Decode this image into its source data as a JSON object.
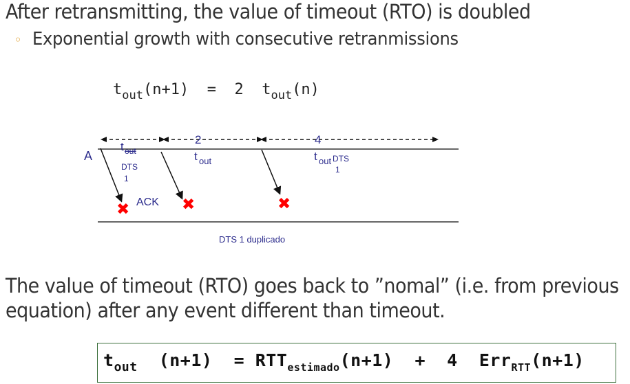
{
  "heading": "After retransmitting, the value of timeout (RTO) is doubled",
  "bullet": "Exponential growth with consecutive retranmissions",
  "formula1": {
    "lhs_t": "t",
    "lhs_sub": "out",
    "lhs_arg": "(n+1)",
    "eq": "=",
    "coef": "2",
    "rhs_t": "t",
    "rhs_sub": "out",
    "rhs_arg": "(n)"
  },
  "diagram": {
    "label_a": "A",
    "interval_1": "t",
    "interval_1_sub": "out",
    "interval_2_coef": "2",
    "interval_2": "t",
    "interval_2_sub": "out",
    "interval_3_coef": "4",
    "interval_3": "t",
    "interval_3_sub": "out",
    "dts_1_line1": "DTS",
    "dts_1_line2": "1",
    "dts_2_line1": "DTS",
    "dts_2_line2": "1",
    "ack": "ACK",
    "dts_dup": "DTS 1 duplicado",
    "line_color": "#333333",
    "text_color": "#2b2b8c",
    "x_color": "#ff0000"
  },
  "paragraph": {
    "line1": "The value of timeout (RTO) goes back to ”nomal” (i.e. from previous",
    "line2": "equation) after any event different than timeout."
  },
  "formula2": {
    "t": "t",
    "t_sub": "out",
    "arg1": "(n+1)",
    "eq": "=",
    "rtt": "RTT",
    "rtt_sub": "estimado",
    "arg2": "(n+1)",
    "plus": "+",
    "coef": "4",
    "err": "Err",
    "err_sub": "RTT",
    "arg3": "(n+1)"
  }
}
